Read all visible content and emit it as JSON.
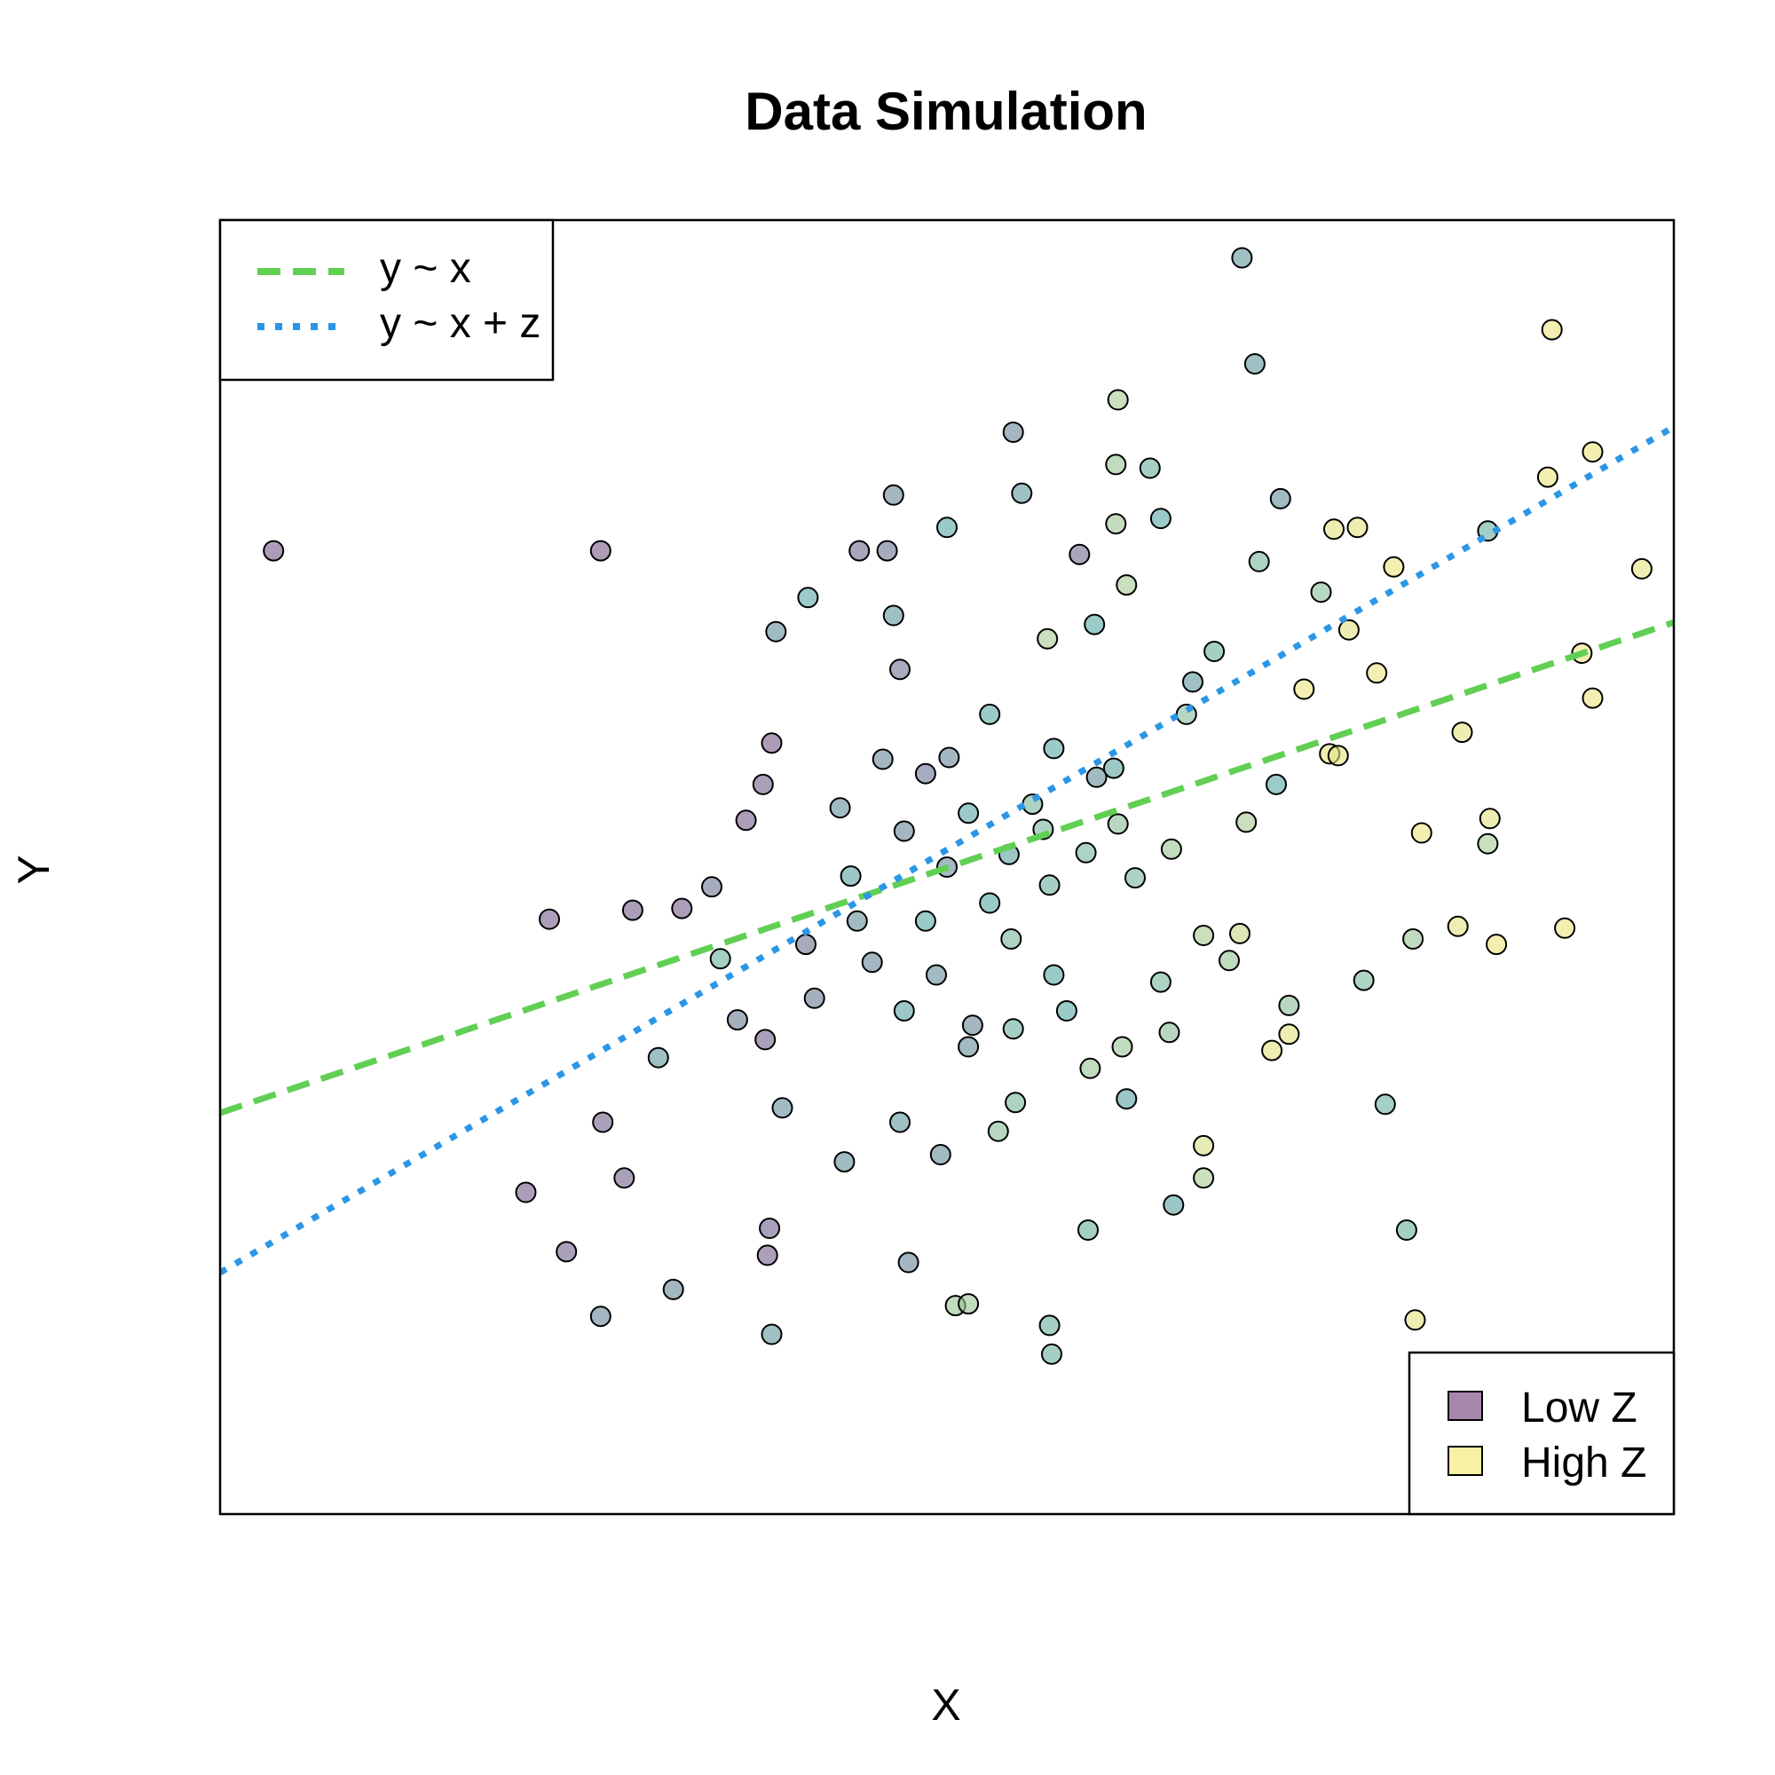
{
  "chart_data": {
    "type": "scatter",
    "title": "Data Simulation",
    "xlabel": "X",
    "ylabel": "Y",
    "xlim": [
      -3.6,
      3.2
    ],
    "ylim": [
      -3.6,
      3.6
    ],
    "axes_ticks": false,
    "grid": false,
    "colors": {
      "low_z": "#7a4f86",
      "high_z": "#f5e97a",
      "mid_z": "#58a9a3",
      "line_y_x": "#61cf54",
      "line_y_xz": "#2b96e6"
    },
    "fit_lines": [
      {
        "name": "y ~ x",
        "style": "dashed",
        "color": "#61cf54",
        "intercept": 0.077,
        "slope": 0.4014
      },
      {
        "name": "y ~ x + z",
        "style": "dotted",
        "color": "#2b96e6",
        "intercept": 0.235,
        "slope": 0.692
      }
    ],
    "legend_lines": {
      "position": "top-left",
      "entries": [
        "y ~ x",
        "y ~ x + z"
      ]
    },
    "legend_fill": {
      "position": "bottom-right",
      "entries": [
        {
          "label": "Low Z",
          "color": "#7a4f86"
        },
        {
          "label": "High Z",
          "color": "#f5e97a"
        }
      ]
    },
    "points": [
      {
        "x": -3.35,
        "y": 1.76,
        "z": 0.05
      },
      {
        "x": -1.82,
        "y": 1.76,
        "z": 0.05
      },
      {
        "x": 1.18,
        "y": 3.39,
        "z": 0.4
      },
      {
        "x": 1.24,
        "y": 2.8,
        "z": 0.4
      },
      {
        "x": 2.63,
        "y": 2.99,
        "z": 0.97
      },
      {
        "x": 2.61,
        "y": 2.17,
        "z": 0.97
      },
      {
        "x": 2.82,
        "y": 2.31,
        "z": 0.97
      },
      {
        "x": 2.33,
        "y": 1.87,
        "z": 0.55
      },
      {
        "x": 0.6,
        "y": 2.6,
        "z": 0.75
      },
      {
        "x": 0.11,
        "y": 2.42,
        "z": 0.3
      },
      {
        "x": 0.15,
        "y": 2.08,
        "z": 0.4
      },
      {
        "x": 0.75,
        "y": 2.22,
        "z": 0.55
      },
      {
        "x": 0.59,
        "y": 2.24,
        "z": 0.7
      },
      {
        "x": 0.8,
        "y": 1.94,
        "z": 0.5
      },
      {
        "x": 1.36,
        "y": 2.05,
        "z": 0.35
      },
      {
        "x": -0.45,
        "y": 2.07,
        "z": 0.3
      },
      {
        "x": -0.2,
        "y": 1.89,
        "z": 0.5
      },
      {
        "x": -0.48,
        "y": 1.76,
        "z": 0.2
      },
      {
        "x": -0.61,
        "y": 1.76,
        "z": 0.15
      },
      {
        "x": 0.59,
        "y": 1.91,
        "z": 0.72
      },
      {
        "x": 1.61,
        "y": 1.88,
        "z": 0.95
      },
      {
        "x": 1.72,
        "y": 1.89,
        "z": 0.95
      },
      {
        "x": 1.89,
        "y": 1.67,
        "z": 0.97
      },
      {
        "x": 3.05,
        "y": 1.66,
        "z": 0.95
      },
      {
        "x": 1.55,
        "y": 1.53,
        "z": 0.65
      },
      {
        "x": 0.42,
        "y": 1.74,
        "z": 0.15
      },
      {
        "x": -0.42,
        "y": 1.1,
        "z": 0.2
      },
      {
        "x": -1.02,
        "y": 0.69,
        "z": 0.05
      },
      {
        "x": -1.06,
        "y": 0.46,
        "z": 0.1
      },
      {
        "x": -1.14,
        "y": 0.26,
        "z": 0.08
      },
      {
        "x": -1.3,
        "y": -0.11,
        "z": 0.2
      },
      {
        "x": -2.06,
        "y": -0.29,
        "z": 0.08
      },
      {
        "x": -1.67,
        "y": -0.24,
        "z": 0.08
      },
      {
        "x": -1.44,
        "y": -0.23,
        "z": 0.08
      },
      {
        "x": -1.81,
        "y": -1.42,
        "z": 0.1
      },
      {
        "x": -1.71,
        "y": -1.73,
        "z": 0.1
      },
      {
        "x": -1.55,
        "y": -1.06,
        "z": 0.4
      },
      {
        "x": -1.05,
        "y": -0.96,
        "z": 0.1
      },
      {
        "x": -2.17,
        "y": -1.81,
        "z": 0.08
      },
      {
        "x": -1.98,
        "y": -2.14,
        "z": 0.1
      },
      {
        "x": -1.03,
        "y": -2.01,
        "z": 0.1
      },
      {
        "x": -1.04,
        "y": -2.16,
        "z": 0.1
      },
      {
        "x": -1.48,
        "y": -2.35,
        "z": 0.3
      },
      {
        "x": -1.82,
        "y": -2.5,
        "z": 0.3
      },
      {
        "x": -1.02,
        "y": -2.6,
        "z": 0.4
      },
      {
        "x": -0.68,
        "y": -1.64,
        "z": 0.35
      },
      {
        "x": -0.38,
        "y": -2.2,
        "z": 0.3
      },
      {
        "x": -0.16,
        "y": -2.44,
        "z": 0.7
      },
      {
        "x": -0.1,
        "y": -2.43,
        "z": 0.7
      },
      {
        "x": 0.28,
        "y": -2.55,
        "z": 0.55
      },
      {
        "x": 0.29,
        "y": -2.71,
        "z": 0.55
      },
      {
        "x": 0.46,
        "y": -2.02,
        "z": 0.55
      },
      {
        "x": 0.86,
        "y": -1.88,
        "z": 0.45
      },
      {
        "x": 1.0,
        "y": -1.73,
        "z": 0.75
      },
      {
        "x": 1.95,
        "y": -2.02,
        "z": 0.55
      },
      {
        "x": 1.99,
        "y": -2.52,
        "z": 0.95
      },
      {
        "x": 1.0,
        "y": -1.55,
        "z": 0.9
      },
      {
        "x": 1.75,
        "y": -0.63,
        "z": 0.6
      },
      {
        "x": 1.98,
        "y": -0.4,
        "z": 0.7
      },
      {
        "x": 2.19,
        "y": -0.33,
        "z": 0.95
      },
      {
        "x": 2.37,
        "y": -0.43,
        "z": 0.97
      },
      {
        "x": 2.69,
        "y": -0.34,
        "z": 0.97
      },
      {
        "x": 2.34,
        "y": 0.27,
        "z": 0.95
      },
      {
        "x": 2.33,
        "y": 0.13,
        "z": 0.75
      },
      {
        "x": 2.02,
        "y": 0.19,
        "z": 0.97
      },
      {
        "x": 2.21,
        "y": 0.75,
        "z": 0.95
      },
      {
        "x": 2.82,
        "y": 0.94,
        "z": 0.97
      },
      {
        "x": 2.77,
        "y": 1.19,
        "z": 0.97
      },
      {
        "x": 1.47,
        "y": 0.99,
        "z": 0.97
      },
      {
        "x": 0.3,
        "y": 0.66,
        "z": 0.5
      },
      {
        "x": 0.58,
        "y": 0.55,
        "z": 0.45
      },
      {
        "x": 1.59,
        "y": 0.63,
        "z": 0.95
      },
      {
        "x": 1.63,
        "y": 0.62,
        "z": 0.95
      },
      {
        "x": 1.34,
        "y": 0.46,
        "z": 0.5
      },
      {
        "x": 0.92,
        "y": 0.85,
        "z": 0.65
      },
      {
        "x": 0.0,
        "y": 0.85,
        "z": 0.5
      },
      {
        "x": -0.19,
        "y": 0.61,
        "z": 0.3
      },
      {
        "x": -0.3,
        "y": 0.52,
        "z": 0.2
      },
      {
        "x": -0.5,
        "y": 0.6,
        "z": 0.3
      },
      {
        "x": -0.7,
        "y": 0.33,
        "z": 0.35
      },
      {
        "x": -0.1,
        "y": 0.3,
        "z": 0.5
      },
      {
        "x": 0.25,
        "y": 0.21,
        "z": 0.6
      },
      {
        "x": 0.45,
        "y": 0.08,
        "z": 0.6
      },
      {
        "x": 0.6,
        "y": 0.24,
        "z": 0.65
      },
      {
        "x": 0.68,
        "y": -0.06,
        "z": 0.6
      },
      {
        "x": 1.0,
        "y": -0.38,
        "z": 0.75
      },
      {
        "x": 1.17,
        "y": -0.37,
        "z": 0.85
      },
      {
        "x": 0.8,
        "y": -0.64,
        "z": 0.6
      },
      {
        "x": 0.62,
        "y": -1.0,
        "z": 0.7
      },
      {
        "x": 0.36,
        "y": -0.8,
        "z": 0.5
      },
      {
        "x": 0.11,
        "y": -0.9,
        "z": 0.55
      },
      {
        "x": -0.1,
        "y": -1.0,
        "z": 0.35
      },
      {
        "x": -0.4,
        "y": -0.8,
        "z": 0.45
      },
      {
        "x": -0.55,
        "y": -0.53,
        "z": 0.3
      },
      {
        "x": -0.62,
        "y": -0.3,
        "z": 0.35
      },
      {
        "x": -0.3,
        "y": -0.3,
        "z": 0.5
      },
      {
        "x": 0.1,
        "y": -0.4,
        "z": 0.6
      },
      {
        "x": 0.28,
        "y": -0.1,
        "z": 0.55
      },
      {
        "x": 0.09,
        "y": 0.07,
        "z": 0.45
      },
      {
        "x": -0.2,
        "y": 0.0,
        "z": 0.35
      },
      {
        "x": -0.86,
        "y": -0.43,
        "z": 0.2
      },
      {
        "x": -0.82,
        "y": -0.73,
        "z": 0.25
      },
      {
        "x": -1.18,
        "y": -0.85,
        "z": 0.25
      },
      {
        "x": -1.26,
        "y": -0.51,
        "z": 0.55
      },
      {
        "x": -0.97,
        "y": -1.34,
        "z": 0.35
      },
      {
        "x": -0.42,
        "y": -1.42,
        "z": 0.4
      },
      {
        "x": -0.23,
        "y": -1.6,
        "z": 0.35
      },
      {
        "x": 0.04,
        "y": -1.47,
        "z": 0.65
      },
      {
        "x": 0.12,
        "y": -1.31,
        "z": 0.6
      },
      {
        "x": 0.47,
        "y": -1.12,
        "z": 0.7
      },
      {
        "x": 0.64,
        "y": -1.29,
        "z": 0.45
      },
      {
        "x": 0.84,
        "y": -0.92,
        "z": 0.65
      },
      {
        "x": 1.12,
        "y": -0.52,
        "z": 0.7
      },
      {
        "x": 1.4,
        "y": -0.93,
        "z": 0.95
      },
      {
        "x": 1.4,
        "y": -0.77,
        "z": 0.65
      },
      {
        "x": 0.95,
        "y": 1.03,
        "z": 0.4
      },
      {
        "x": 0.64,
        "y": 1.57,
        "z": 0.75
      },
      {
        "x": 0.49,
        "y": 1.35,
        "z": 0.5
      },
      {
        "x": 0.27,
        "y": 1.27,
        "z": 0.75
      },
      {
        "x": -0.45,
        "y": 1.4,
        "z": 0.4
      },
      {
        "x": -0.85,
        "y": 1.5,
        "z": 0.5
      },
      {
        "x": -1.0,
        "y": 1.31,
        "z": 0.35
      },
      {
        "x": 1.81,
        "y": 1.08,
        "z": 0.97
      },
      {
        "x": 1.68,
        "y": 1.32,
        "z": 0.95
      },
      {
        "x": 1.26,
        "y": 1.7,
        "z": 0.6
      },
      {
        "x": 1.05,
        "y": 1.2,
        "z": 0.55
      },
      {
        "x": 1.85,
        "y": -1.32,
        "z": 0.55
      },
      {
        "x": 1.32,
        "y": -1.02,
        "z": 0.95
      },
      {
        "x": -0.08,
        "y": -0.88,
        "z": 0.3
      },
      {
        "x": -0.65,
        "y": -0.05,
        "z": 0.45
      },
      {
        "x": 0.5,
        "y": 0.5,
        "z": 0.35
      },
      {
        "x": 0.2,
        "y": 0.35,
        "z": 0.6
      },
      {
        "x": -0.4,
        "y": 0.2,
        "z": 0.3
      },
      {
        "x": 0.0,
        "y": -0.2,
        "z": 0.5
      },
      {
        "x": 0.85,
        "y": 0.1,
        "z": 0.7
      },
      {
        "x": 1.2,
        "y": 0.25,
        "z": 0.75
      },
      {
        "x": 0.3,
        "y": -0.6,
        "z": 0.5
      },
      {
        "x": -0.25,
        "y": -0.6,
        "z": 0.35
      }
    ]
  }
}
